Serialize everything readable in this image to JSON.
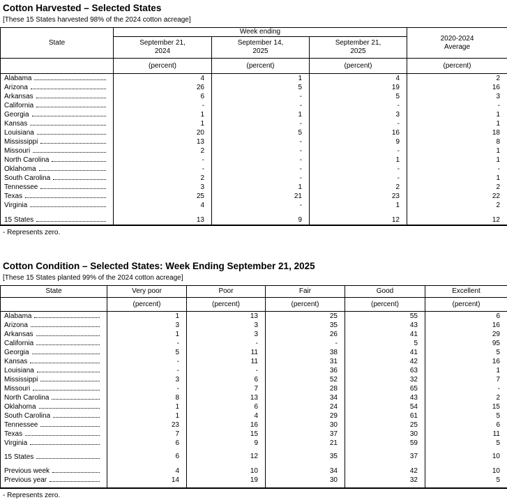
{
  "harvested": {
    "title": "Cotton Harvested – Selected States",
    "subtitle": "[These 15 States harvested 98% of the 2024 cotton acreage]",
    "header": {
      "state": "State",
      "group": "Week ending",
      "cols": [
        "September 21,\n2024",
        "September 14,\n2025",
        "September 21,\n2025"
      ],
      "average": "2020-2024\nAverage",
      "unit": "(percent)"
    },
    "rows": [
      {
        "state": "Alabama",
        "values": [
          "4",
          "1",
          "4",
          "2"
        ]
      },
      {
        "state": "Arizona",
        "values": [
          "26",
          "5",
          "19",
          "16"
        ]
      },
      {
        "state": "Arkansas",
        "values": [
          "6",
          "-",
          "5",
          "3"
        ]
      },
      {
        "state": "California",
        "values": [
          "-",
          "-",
          "-",
          "-"
        ]
      },
      {
        "state": "Georgia",
        "values": [
          "1",
          "1",
          "3",
          "1"
        ]
      },
      {
        "state": "Kansas",
        "values": [
          "1",
          "-",
          "-",
          "1"
        ]
      },
      {
        "state": "Louisiana",
        "values": [
          "20",
          "5",
          "16",
          "18"
        ]
      },
      {
        "state": "Mississippi",
        "values": [
          "13",
          "-",
          "9",
          "8"
        ]
      },
      {
        "state": "Missouri",
        "values": [
          "2",
          "-",
          "-",
          "1"
        ]
      },
      {
        "state": "North Carolina",
        "values": [
          "-",
          "-",
          "1",
          "1"
        ]
      },
      {
        "state": "Oklahoma",
        "values": [
          "-",
          "-",
          "-",
          "-"
        ]
      },
      {
        "state": "South Carolina",
        "values": [
          "2",
          "-",
          "-",
          "1"
        ]
      },
      {
        "state": "Tennessee",
        "values": [
          "3",
          "1",
          "2",
          "2"
        ]
      },
      {
        "state": "Texas",
        "values": [
          "25",
          "21",
          "23",
          "22"
        ]
      },
      {
        "state": "Virginia",
        "values": [
          "4",
          "-",
          "1",
          "2"
        ]
      }
    ],
    "total": {
      "state": "15 States",
      "values": [
        "13",
        "9",
        "12",
        "12"
      ]
    },
    "footnote": "- Represents zero."
  },
  "condition": {
    "title": "Cotton Condition – Selected States: Week Ending September 21, 2025",
    "subtitle": "[These 15 States planted 99% of the 2024 cotton acreage]",
    "header": {
      "state": "State",
      "cols": [
        "Very poor",
        "Poor",
        "Fair",
        "Good",
        "Excellent"
      ],
      "unit": "(percent)"
    },
    "rows": [
      {
        "state": "Alabama",
        "values": [
          "1",
          "13",
          "25",
          "55",
          "6"
        ]
      },
      {
        "state": "Arizona",
        "values": [
          "3",
          "3",
          "35",
          "43",
          "16"
        ]
      },
      {
        "state": "Arkansas",
        "values": [
          "1",
          "3",
          "26",
          "41",
          "29"
        ]
      },
      {
        "state": "California",
        "values": [
          "-",
          "-",
          "-",
          "5",
          "95"
        ]
      },
      {
        "state": "Georgia",
        "values": [
          "5",
          "11",
          "38",
          "41",
          "5"
        ]
      },
      {
        "state": "Kansas",
        "values": [
          "-",
          "11",
          "31",
          "42",
          "16"
        ]
      },
      {
        "state": "Louisiana",
        "values": [
          "-",
          "-",
          "36",
          "63",
          "1"
        ]
      },
      {
        "state": "Mississippi",
        "values": [
          "3",
          "6",
          "52",
          "32",
          "7"
        ]
      },
      {
        "state": "Missouri",
        "values": [
          "-",
          "7",
          "28",
          "65",
          "-"
        ]
      },
      {
        "state": "North Carolina",
        "values": [
          "8",
          "13",
          "34",
          "43",
          "2"
        ]
      },
      {
        "state": "Oklahoma",
        "values": [
          "1",
          "6",
          "24",
          "54",
          "15"
        ]
      },
      {
        "state": "South Carolina",
        "values": [
          "1",
          "4",
          "29",
          "61",
          "5"
        ]
      },
      {
        "state": "Tennessee",
        "values": [
          "23",
          "16",
          "30",
          "25",
          "6"
        ]
      },
      {
        "state": "Texas",
        "values": [
          "7",
          "15",
          "37",
          "30",
          "11"
        ]
      },
      {
        "state": "Virginia",
        "values": [
          "6",
          "9",
          "21",
          "59",
          "5"
        ]
      }
    ],
    "total": {
      "state": "15 States",
      "values": [
        "6",
        "12",
        "35",
        "37",
        "10"
      ]
    },
    "extra": [
      {
        "state": "Previous week",
        "values": [
          "4",
          "10",
          "34",
          "42",
          "10"
        ]
      },
      {
        "state": "Previous year",
        "values": [
          "14",
          "19",
          "30",
          "32",
          "5"
        ]
      }
    ],
    "footnote": "- Represents zero."
  }
}
